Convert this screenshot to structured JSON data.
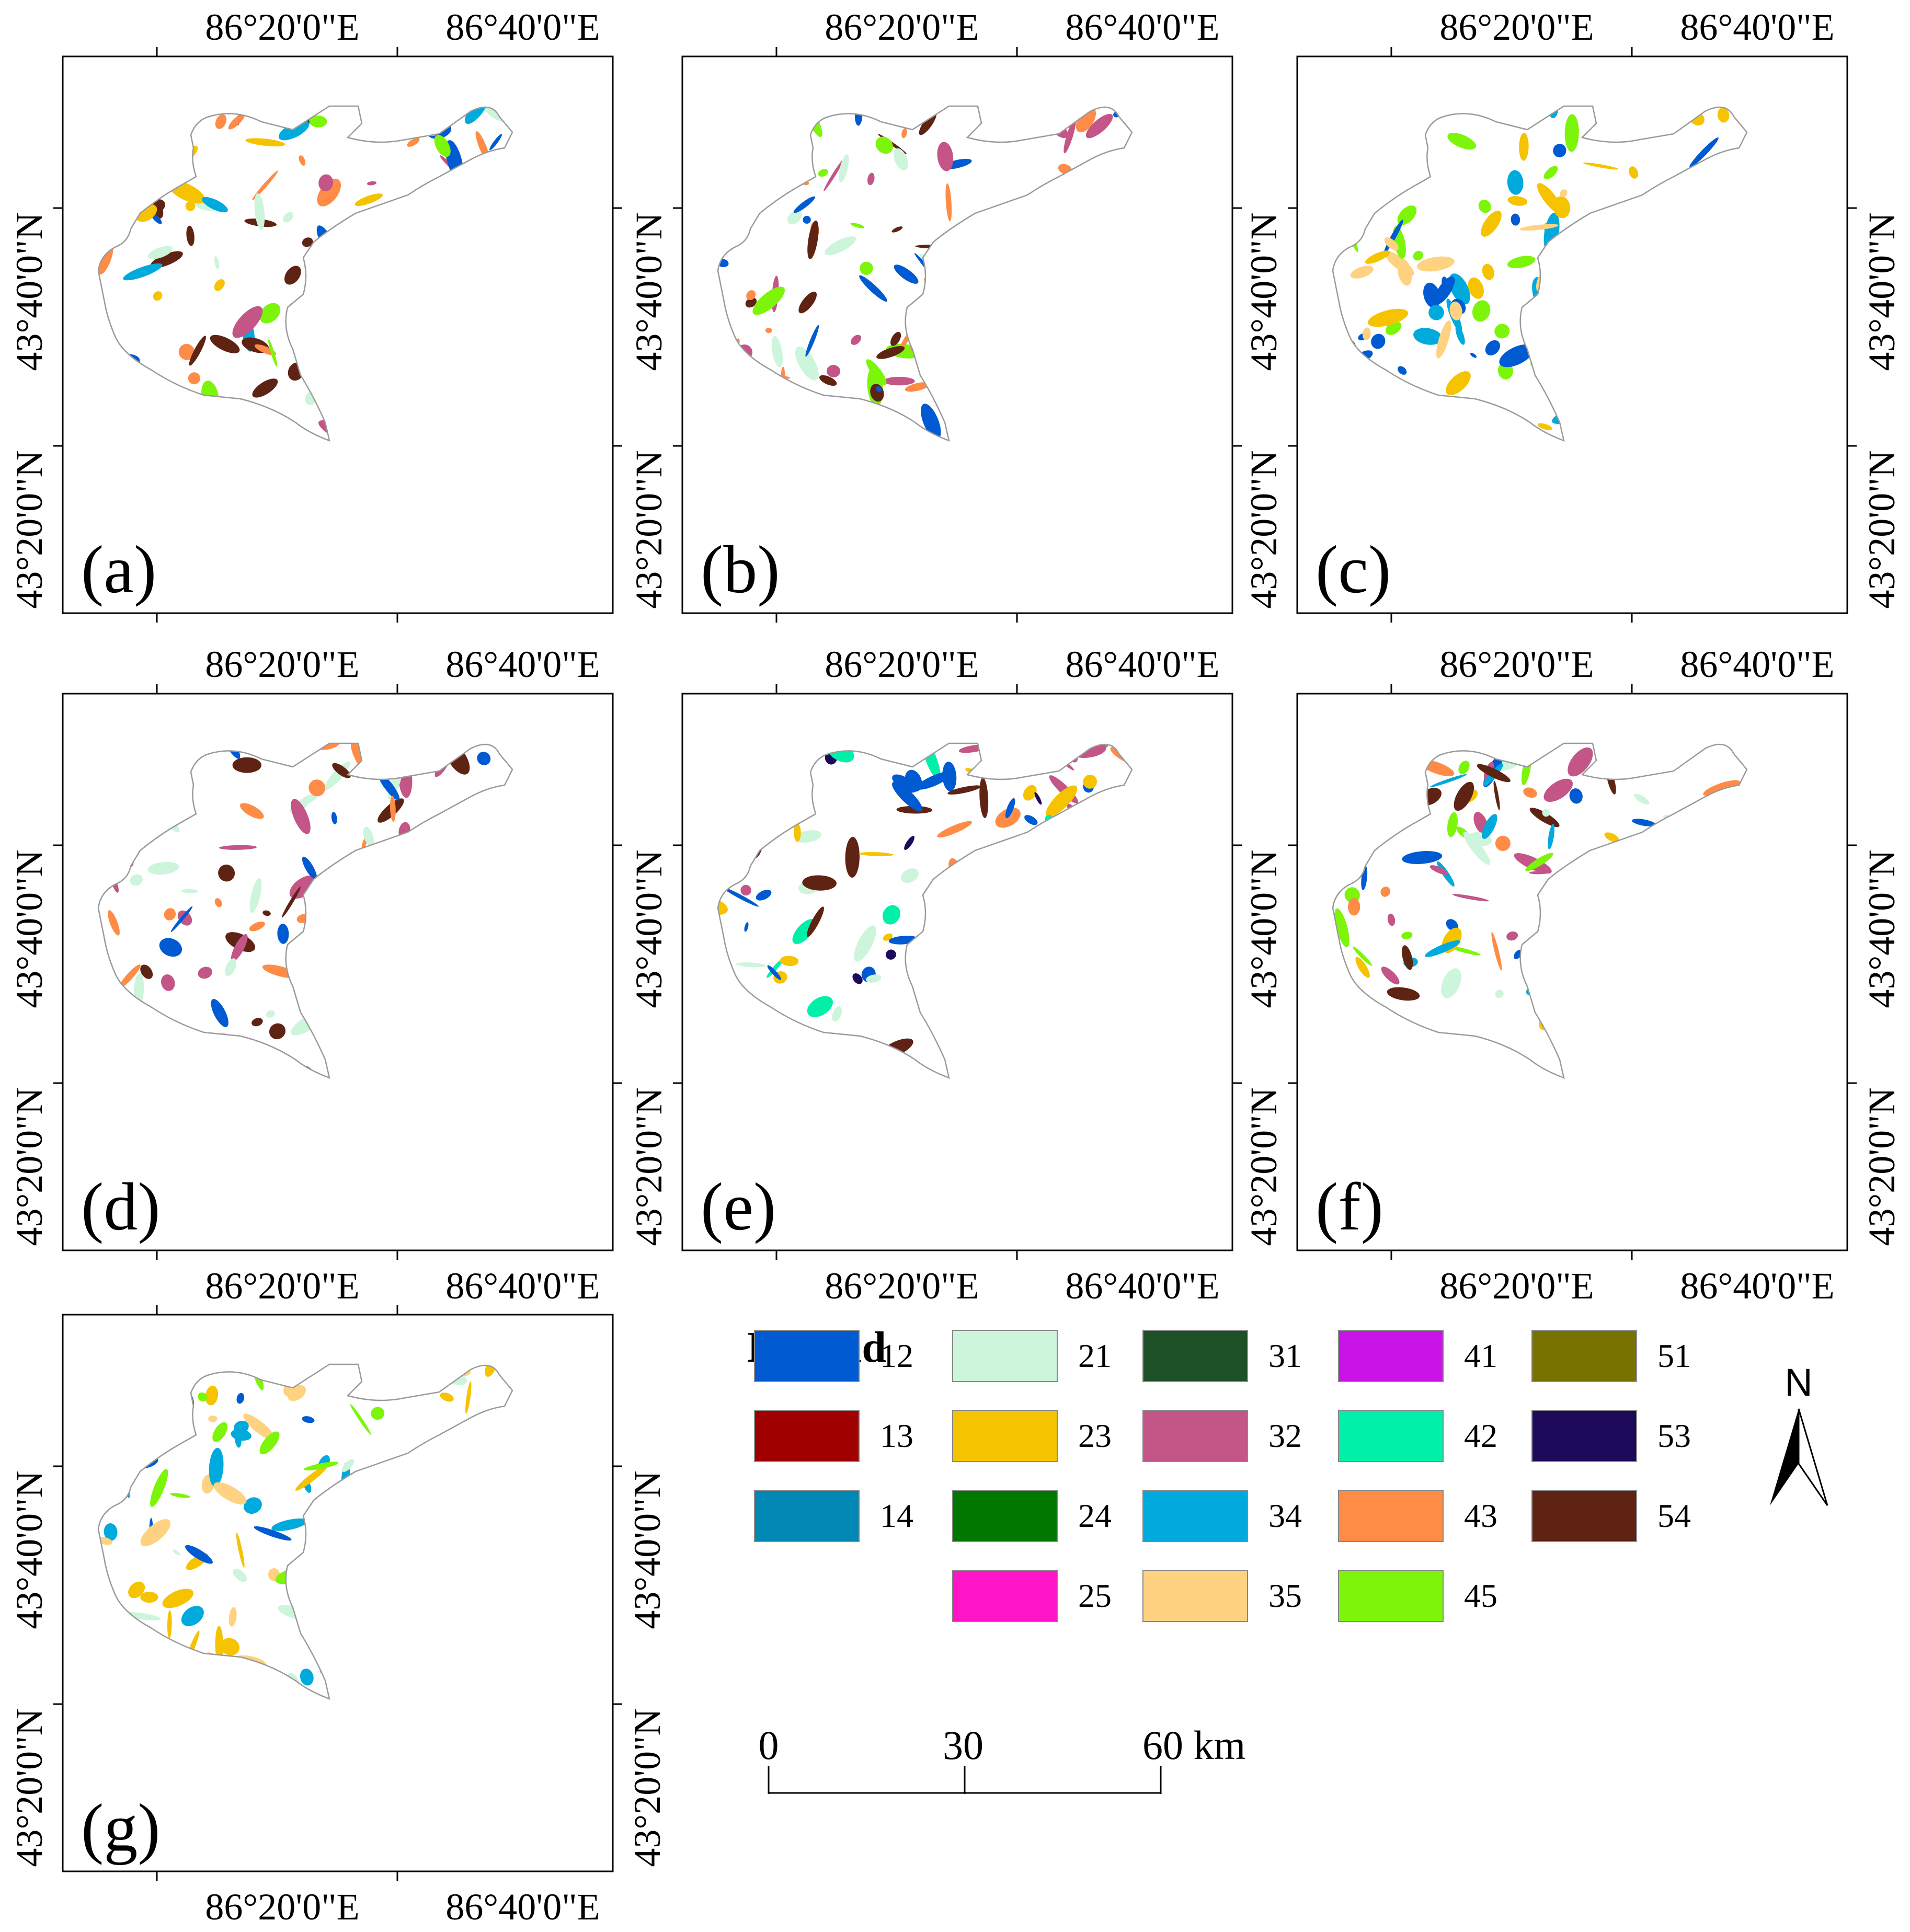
{
  "coordinates": {
    "lon_labels": [
      "86°20'0\"E",
      "86°40'0\"E"
    ],
    "lat_labels": [
      "43°40'0\"N",
      "43°20'0\"N"
    ]
  },
  "panels": [
    {
      "label": "(a)",
      "right_lat_labels": false,
      "lon_labels_top": true,
      "lon_labels_bottom": false,
      "class_mix": [
        "12",
        "21",
        "23",
        "32",
        "34",
        "43",
        "45",
        "54"
      ]
    },
    {
      "label": "(b)",
      "right_lat_labels": false,
      "lon_labels_top": true,
      "lon_labels_bottom": false,
      "class_mix": [
        "12",
        "21",
        "32",
        "43",
        "45",
        "54"
      ]
    },
    {
      "label": "(c)",
      "right_lat_labels": true,
      "lon_labels_top": true,
      "lon_labels_bottom": false,
      "class_mix": [
        "12",
        "23",
        "34",
        "35",
        "45"
      ]
    },
    {
      "label": "(d)",
      "right_lat_labels": false,
      "lon_labels_top": true,
      "lon_labels_bottom": true,
      "class_mix": [
        "12",
        "21",
        "32",
        "43",
        "54"
      ]
    },
    {
      "label": "(e)",
      "right_lat_labels": false,
      "lon_labels_top": true,
      "lon_labels_bottom": true,
      "class_mix": [
        "12",
        "21",
        "23",
        "32",
        "42",
        "43",
        "53",
        "54"
      ]
    },
    {
      "label": "(f)",
      "right_lat_labels": true,
      "lon_labels_top": true,
      "lon_labels_bottom": true,
      "class_mix": [
        "12",
        "21",
        "23",
        "32",
        "34",
        "43",
        "45",
        "54"
      ]
    },
    {
      "label": "(g)",
      "right_lat_labels": true,
      "lon_labels_top": false,
      "lon_labels_bottom": true,
      "class_mix": [
        "12",
        "21",
        "23",
        "34",
        "35",
        "45"
      ]
    }
  ],
  "legend": {
    "title": "Legend",
    "columns": [
      [
        {
          "code": "12",
          "color": "#005ad2"
        },
        {
          "code": "13",
          "color": "#a00000"
        },
        {
          "code": "14",
          "color": "#0087b4"
        }
      ],
      [
        {
          "code": "21",
          "color": "#cdf5dc"
        },
        {
          "code": "23",
          "color": "#f5c300"
        },
        {
          "code": "24",
          "color": "#007800"
        },
        {
          "code": "25",
          "color": "#ff14c8"
        }
      ],
      [
        {
          "code": "31",
          "color": "#1e5028"
        },
        {
          "code": "32",
          "color": "#c35587"
        },
        {
          "code": "34",
          "color": "#00aadc"
        },
        {
          "code": "35",
          "color": "#ffd282"
        }
      ],
      [
        {
          "code": "41",
          "color": "#c814e6"
        },
        {
          "code": "42",
          "color": "#00f0aa"
        },
        {
          "code": "43",
          "color": "#ff8c46"
        },
        {
          "code": "45",
          "color": "#7df50a"
        }
      ],
      [
        {
          "code": "51",
          "color": "#787300"
        },
        {
          "code": "53",
          "color": "#1e0a5a"
        },
        {
          "code": "54",
          "color": "#5f2314"
        }
      ]
    ]
  },
  "scale_bar": {
    "labels": [
      "0",
      "30",
      "60 km"
    ]
  },
  "north_arrow": {
    "label": "N"
  }
}
